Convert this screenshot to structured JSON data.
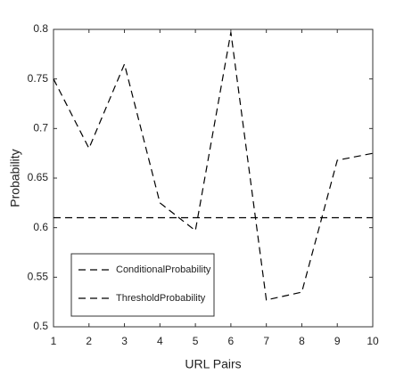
{
  "chart_data": {
    "type": "line",
    "x_label": "URL Pairs",
    "y_label": "Probability",
    "x": [
      1,
      2,
      3,
      4,
      5,
      6,
      7,
      8,
      9,
      10
    ],
    "series": [
      {
        "name": "ConditionalProbability",
        "color": "#000000",
        "values": [
          0.75,
          0.68,
          0.765,
          0.625,
          0.597,
          0.797,
          0.527,
          0.535,
          0.668,
          0.675
        ]
      },
      {
        "name": "ThresholdProbability",
        "color": "#000000",
        "values": [
          0.61,
          0.61,
          0.61,
          0.61,
          0.61,
          0.61,
          0.61,
          0.61,
          0.61,
          0.61
        ]
      }
    ],
    "xlim": [
      1,
      10
    ],
    "xticks": [
      1,
      2,
      3,
      4,
      5,
      6,
      7,
      8,
      9,
      10
    ],
    "ylim": [
      0.5,
      0.8
    ],
    "yticks": [
      0.5,
      0.55,
      0.6,
      0.65,
      0.7,
      0.75,
      0.8
    ],
    "grid": false,
    "legend": "lower left"
  }
}
